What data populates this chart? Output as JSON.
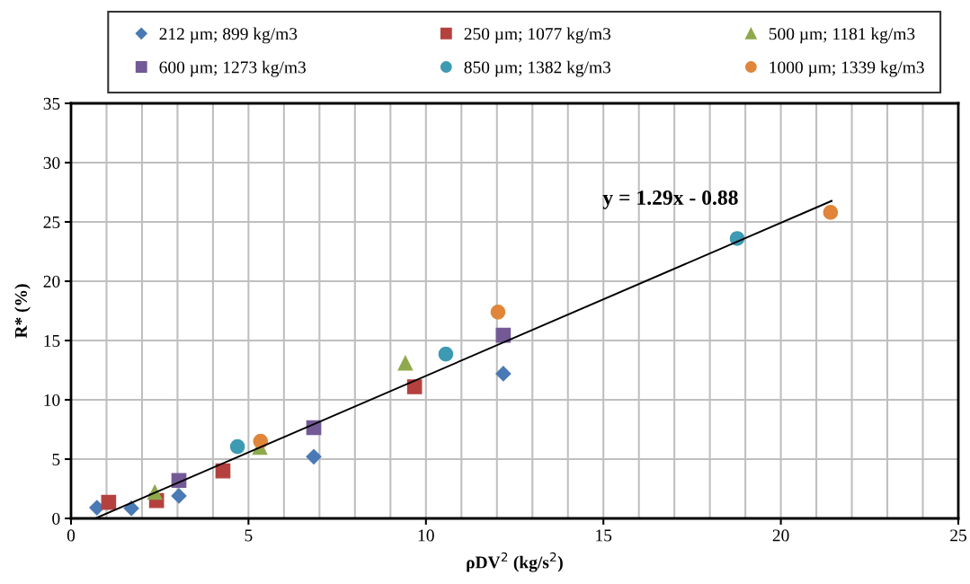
{
  "chart_data": {
    "type": "scatter",
    "xlabel": "ρDV$^{2}$ (kg/s$^{2}$)",
    "ylabel": "R* (%)",
    "xlim": [
      0,
      25
    ],
    "ylim": [
      0,
      35
    ],
    "xticks": [
      0,
      {
        "value": 1,
        "label": null
      },
      {
        "value": 2,
        "label": null
      },
      {
        "value": 3,
        "label": null
      },
      {
        "value": 4,
        "label": null
      },
      5,
      {
        "value": 6,
        "label": null
      },
      {
        "value": 7,
        "label": null
      },
      {
        "value": 8,
        "label": null
      },
      {
        "value": 9,
        "label": null
      },
      10,
      {
        "value": 11,
        "label": null
      },
      {
        "value": 12,
        "label": null
      },
      {
        "value": 13,
        "label": null
      },
      {
        "value": 14,
        "label": null
      },
      15,
      {
        "value": 16,
        "label": null
      },
      {
        "value": 17,
        "label": null
      },
      {
        "value": 18,
        "label": null
      },
      {
        "value": 19,
        "label": null
      },
      20,
      {
        "value": 21,
        "label": null
      },
      {
        "value": 22,
        "label": null
      },
      {
        "value": 23,
        "label": null
      },
      {
        "value": 24,
        "label": null
      },
      25
    ],
    "yticks": [
      0,
      5,
      10,
      15,
      20,
      25,
      30,
      35
    ],
    "grid": true,
    "legend": "top",
    "annotations": [
      "y = 1.29x - 0.88"
    ],
    "series": [
      {
        "name": "212 µm; 899 kg/m3",
        "color": "#4a7ab5",
        "marker": "diamond",
        "x": [
          0.73,
          1.7,
          3.04,
          6.84,
          12.18
        ],
        "values": [
          0.9,
          0.85,
          1.9,
          5.2,
          12.2
        ]
      },
      {
        "name": "250 µm; 1077 kg/m3",
        "color": "#b5413f",
        "marker": "square",
        "x": [
          1.06,
          2.41,
          4.28,
          9.68
        ],
        "values": [
          1.35,
          1.5,
          4.0,
          11.1
        ]
      },
      {
        "name": "500 µm; 1181 kg/m3",
        "color": "#8eaa4d",
        "marker": "triangle",
        "x": [
          2.36,
          5.32,
          9.42
        ],
        "values": [
          2.2,
          6.0,
          13.1
        ]
      },
      {
        "name": "600 µm; 1273 kg/m3",
        "color": "#735a96",
        "marker": "square",
        "x": [
          3.04,
          6.84,
          12.18
        ],
        "values": [
          3.2,
          7.65,
          15.45
        ]
      },
      {
        "name": "850 µm; 1382 kg/m3",
        "color": "#3d9ab3",
        "marker": "circle",
        "x": [
          4.69,
          10.56,
          18.77
        ],
        "values": [
          6.05,
          13.85,
          23.6
        ]
      },
      {
        "name": "1000 µm; 1339 kg/m3",
        "color": "#e0853a",
        "marker": "circle",
        "x": [
          5.34,
          12.03,
          21.4
        ],
        "values": [
          6.5,
          17.4,
          25.8
        ]
      },
      {
        "type": "line",
        "color": "#000000",
        "marker": "none",
        "x": [
          0.73,
          21.43
        ],
        "values": [
          0.06,
          26.77
        ]
      }
    ]
  }
}
